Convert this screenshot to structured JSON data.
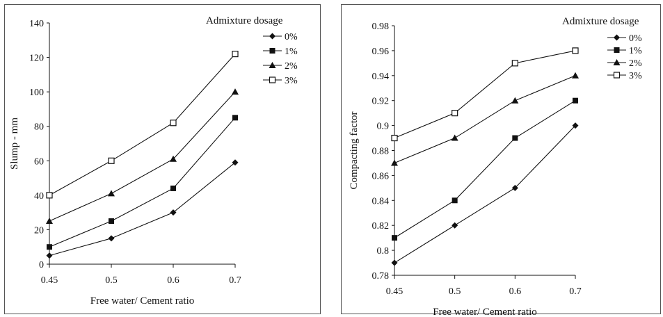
{
  "chart_data": [
    {
      "type": "line",
      "title": "",
      "xlabel": "Free water/ Cement ratio",
      "ylabel": "Slump - mm",
      "x": [
        0.45,
        0.5,
        0.6,
        0.7
      ],
      "xticks": [
        "0.45",
        "0.5",
        "0.6",
        "0.7"
      ],
      "ylim": [
        0,
        140
      ],
      "yticks": [
        "0",
        "20",
        "40",
        "60",
        "80",
        "100",
        "120",
        "140"
      ],
      "ystep": 20,
      "grid": false,
      "legend": {
        "title": "Admixture dosage",
        "position": "top-right"
      },
      "series": [
        {
          "name": "0%",
          "marker": "diamond",
          "values": [
            5,
            15,
            30,
            59
          ]
        },
        {
          "name": "1%",
          "marker": "square-filled",
          "values": [
            10,
            25,
            44,
            85
          ]
        },
        {
          "name": "2%",
          "marker": "triangle",
          "values": [
            25,
            41,
            61,
            100
          ]
        },
        {
          "name": "3%",
          "marker": "square-open",
          "values": [
            40,
            60,
            82,
            122
          ]
        }
      ]
    },
    {
      "type": "line",
      "title": "",
      "xlabel": "Free water/ Cement ratio",
      "ylabel": "Compacting factor",
      "x": [
        0.45,
        0.5,
        0.6,
        0.7
      ],
      "xticks": [
        "0.45",
        "0.5",
        "0.6",
        "0.7"
      ],
      "ylim": [
        0.78,
        0.98
      ],
      "yticks": [
        "0.78",
        "0.8",
        "0.82",
        "0.84",
        "0.86",
        "0.88",
        "0.9",
        "0.92",
        "0.94",
        "0.96",
        "0.98"
      ],
      "ystep": 0.02,
      "grid": false,
      "legend": {
        "title": "Admixture dosage",
        "position": "top-right"
      },
      "series": [
        {
          "name": "0%",
          "marker": "diamond",
          "values": [
            0.79,
            0.82,
            0.85,
            0.9
          ]
        },
        {
          "name": "1%",
          "marker": "square-filled",
          "values": [
            0.81,
            0.84,
            0.89,
            0.92
          ]
        },
        {
          "name": "2%",
          "marker": "triangle",
          "values": [
            0.87,
            0.89,
            0.92,
            0.94
          ]
        },
        {
          "name": "3%",
          "marker": "square-open",
          "values": [
            0.89,
            0.91,
            0.95,
            0.96
          ]
        }
      ]
    }
  ]
}
